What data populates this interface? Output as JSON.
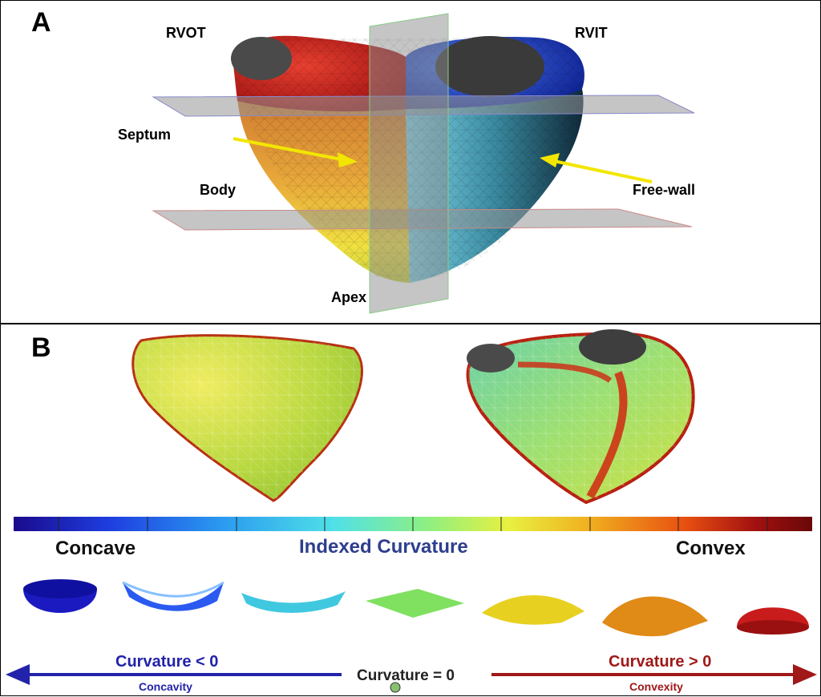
{
  "panel_a": {
    "label": "A",
    "labels": {
      "rvot": "RVOT",
      "rvit": "RVIT",
      "septum": "Septum",
      "body": "Body",
      "free_wall": "Free-wall",
      "apex": "Apex"
    },
    "colors": {
      "arrow": "#f2e600",
      "outflow": "#c81e1e",
      "inflow": "#1f3ed6",
      "septum_region": "#e8a83a",
      "free_wall_region": "#3a8aa0"
    }
  },
  "panel_b": {
    "label": "B",
    "colorbar": {
      "left_label": "Concave",
      "center_label": "Indexed Curvature",
      "right_label": "Convex",
      "colors": [
        "#1a0a8c",
        "#1e3ee0",
        "#2a9af0",
        "#4fe0e8",
        "#8ff080",
        "#e8f040",
        "#f0b020",
        "#e85010",
        "#a01010",
        "#6a0808"
      ]
    },
    "shapes": [
      "bowl",
      "concave-surface",
      "shallow-concave-surface",
      "flat-plane",
      "shallow-convex-surface",
      "convex-surface",
      "dome"
    ],
    "arrows": {
      "left_main": "Curvature < 0",
      "left_sub": "Concavity",
      "center": "Curvature = 0",
      "right_main": "Curvature > 0",
      "right_sub": "Convexity"
    },
    "colors": {
      "negative": "#2222aa",
      "positive": "#a01818",
      "zero": "#222222"
    }
  }
}
